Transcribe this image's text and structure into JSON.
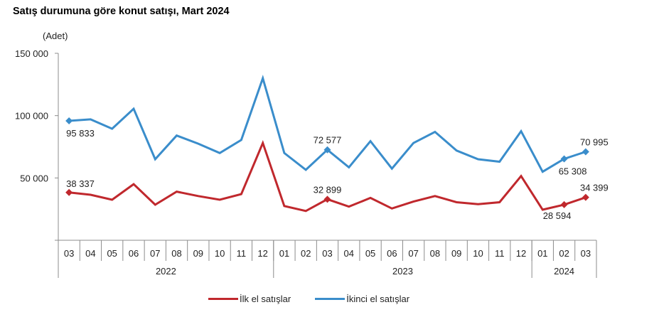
{
  "chart_data": {
    "type": "line",
    "title": "Satış durumuna göre konut satışı, Mart 2024",
    "ylabel": "(Adet)",
    "xlabel": "",
    "ylim": [
      0,
      150000
    ],
    "yticks": [
      0,
      50000,
      100000,
      150000
    ],
    "ytick_labels": [
      "",
      "50 000",
      "100 000",
      "150 000"
    ],
    "categories": [
      "03",
      "04",
      "05",
      "06",
      "07",
      "08",
      "09",
      "10",
      "11",
      "12",
      "01",
      "02",
      "03",
      "04",
      "05",
      "06",
      "07",
      "08",
      "09",
      "10",
      "11",
      "12",
      "01",
      "02",
      "03"
    ],
    "year_groups": [
      {
        "label": "2022",
        "count": 10
      },
      {
        "label": "2023",
        "count": 12
      },
      {
        "label": "2024",
        "count": 3
      }
    ],
    "series": [
      {
        "name": "İlk el satışlar",
        "color": "#C0282D",
        "values": [
          38337,
          36500,
          32500,
          45000,
          28500,
          39000,
          35500,
          32500,
          37000,
          78000,
          27500,
          23500,
          32899,
          27000,
          34000,
          25500,
          31000,
          35500,
          30500,
          29000,
          30500,
          51500,
          24500,
          28594,
          34399
        ],
        "labeled": [
          {
            "index": 0,
            "text": "38 337"
          },
          {
            "index": 12,
            "text": "32 899"
          },
          {
            "index": 23,
            "text": "28 594"
          },
          {
            "index": 24,
            "text": "34 399"
          }
        ],
        "markers": [
          0,
          12,
          23,
          24
        ]
      },
      {
        "name": "İkinci el satışlar",
        "color": "#3A8DCB",
        "values": [
          95833,
          97000,
          89500,
          105500,
          65000,
          84000,
          77500,
          70000,
          80500,
          130000,
          70000,
          56500,
          72577,
          58500,
          79500,
          57500,
          78000,
          87000,
          72000,
          65000,
          63000,
          87500,
          55000,
          65308,
          70995
        ],
        "labeled": [
          {
            "index": 0,
            "text": "95 833"
          },
          {
            "index": 12,
            "text": "72 577"
          },
          {
            "index": 23,
            "text": "65 308"
          },
          {
            "index": 24,
            "text": "70 995"
          }
        ],
        "markers": [
          0,
          12,
          23,
          24
        ]
      }
    ],
    "legend": "bottom",
    "grid": false
  }
}
